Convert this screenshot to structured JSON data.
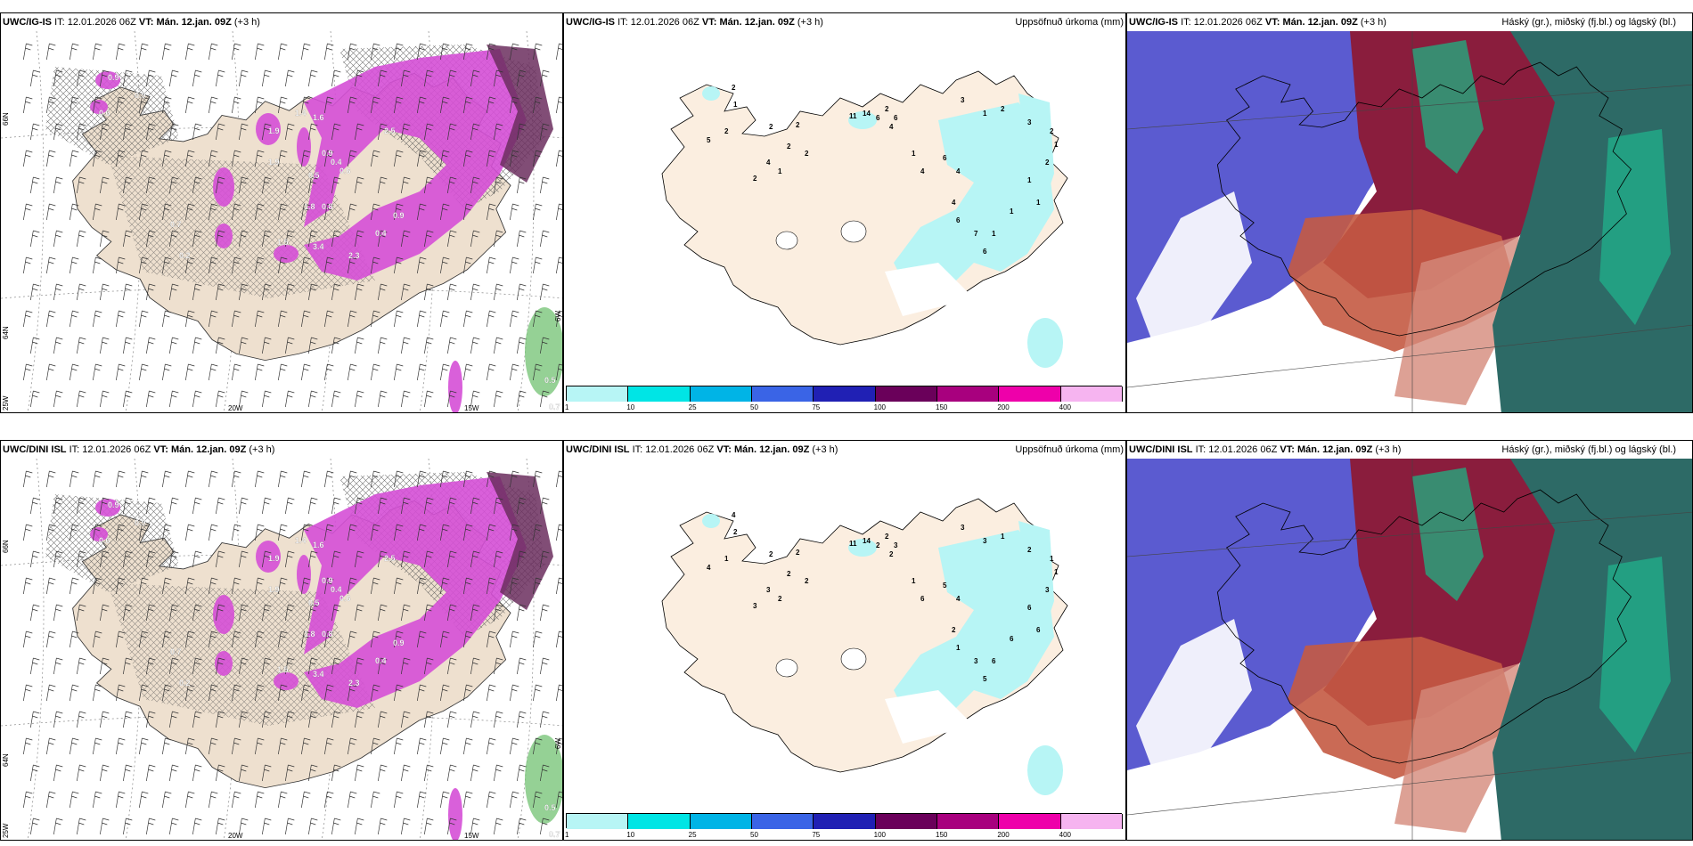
{
  "rows": [
    {
      "model": "UWC/IG-IS",
      "it_label": "IT:",
      "it_value": "12.01.2026 06Z",
      "vt_label": "VT:",
      "vt_value": "Mán. 12.jan. 09Z",
      "lead": "(+3 h)"
    },
    {
      "model": "UWC/DINI ISL",
      "it_label": "IT:",
      "it_value": "12.01.2026 06Z",
      "vt_label": "VT:",
      "vt_value": "Mán. 12.jan. 09Z",
      "lead": "(+3 h)"
    }
  ],
  "panel_titles": {
    "precip": "Uppsöfnuð úrkoma (mm)",
    "clouds": "Háský (gr.), miðský (fj.bl.) og lágský (bl.)"
  },
  "axis_labels": {
    "lat66": "66N",
    "lat64": "64N",
    "lon25": "25W",
    "lon20": "20W",
    "lon15": "15W",
    "lon6": "6W"
  },
  "precip_colorbar": {
    "ticks": [
      "1",
      "10",
      "25",
      "50",
      "75",
      "100",
      "150",
      "200",
      "400"
    ],
    "colors": [
      "#b7f5f5",
      "#00e5e5",
      "#00b4e6",
      "#3a64e6",
      "#2020b4",
      "#6a005a",
      "#a8007e",
      "#ee00aa",
      "#f6b4f0"
    ]
  },
  "wind_values_row1": [
    "0.9",
    "0.9",
    "0.6",
    "1.9",
    "1.4",
    "1.6",
    "2.5",
    "0.9",
    "0.4",
    "0.6",
    "0.5",
    "0.8",
    "1.5",
    "3.4",
    "2.3",
    "1.8",
    "0.4",
    "0.9",
    "1.9",
    "0.2",
    "0.7",
    "0.7",
    "0.5"
  ],
  "precip_values_row1": [
    "2",
    "1",
    "2",
    "2",
    "2",
    "2",
    "2",
    "1",
    "2",
    "4",
    "5",
    "11",
    "14",
    "6",
    "2",
    "6",
    "4",
    "1",
    "4",
    "6",
    "4",
    "4",
    "6",
    "7",
    "6",
    "1",
    "1",
    "1",
    "1",
    "2",
    "1",
    "2",
    "3",
    "2",
    "1",
    "3"
  ],
  "precip_values_row2": [
    "4",
    "2",
    "1",
    "2",
    "2",
    "2",
    "2",
    "2",
    "3",
    "3",
    "4",
    "11",
    "14",
    "2",
    "2",
    "3",
    "2",
    "1",
    "6",
    "5",
    "4",
    "2",
    "1",
    "3",
    "5",
    "6",
    "6",
    "6",
    "6",
    "3",
    "1",
    "1",
    "2",
    "1",
    "3",
    "3"
  ]
}
